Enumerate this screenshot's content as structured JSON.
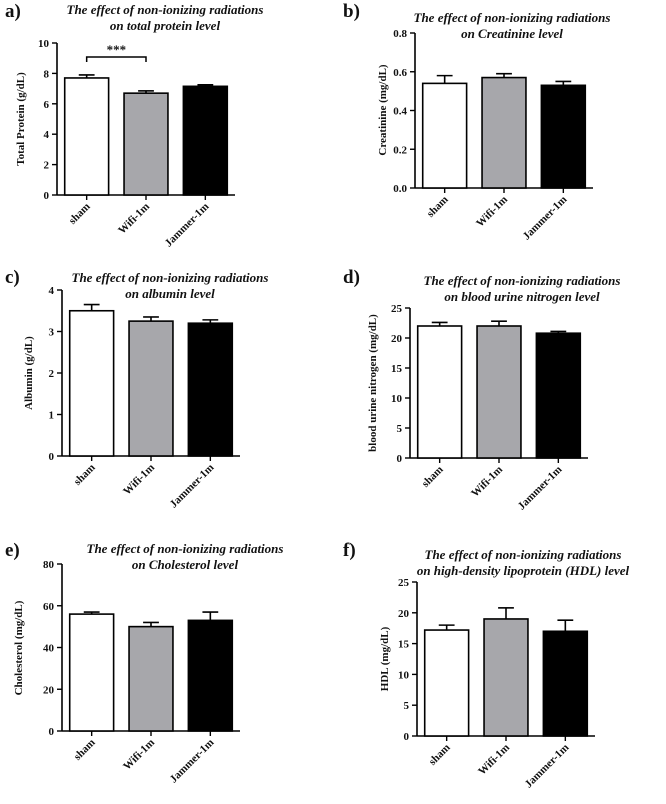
{
  "chart_data": [
    {
      "type": "bar",
      "panel": "a)",
      "title": [
        "The effect of non-ionizing radiations",
        "on total protein level"
      ],
      "ylabel": "Total Protein (g/dL)",
      "categories": [
        "sham",
        "Wifi-1m",
        "Jammer-1m"
      ],
      "values": [
        7.7,
        6.7,
        7.15
      ],
      "errors": [
        0.2,
        0.15,
        0.1
      ],
      "ylim": [
        0,
        10
      ],
      "yticks": [
        "0",
        "2",
        "4",
        "6",
        "8",
        "10"
      ],
      "colors": [
        "#ffffff",
        "#a7a7ab",
        "#000000"
      ],
      "significance": {
        "from": "sham",
        "to": "Wifi-1m",
        "label": "***"
      }
    },
    {
      "type": "bar",
      "panel": "b)",
      "title": [
        "The effect of non-ionizing radiations",
        "on Creatinine level"
      ],
      "ylabel": "Creatinine (mg/dL)",
      "categories": [
        "sham",
        "Wifi-1m",
        "Jammer-1m"
      ],
      "values": [
        0.54,
        0.57,
        0.53
      ],
      "errors": [
        0.04,
        0.02,
        0.02
      ],
      "ylim": [
        0,
        0.8
      ],
      "yticks": [
        "0.0",
        "0.2",
        "0.4",
        "0.6",
        "0.8"
      ],
      "colors": [
        "#ffffff",
        "#a7a7ab",
        "#000000"
      ]
    },
    {
      "type": "bar",
      "panel": "c)",
      "title": [
        "The effect of non-ionizing radiations",
        "on albumin level"
      ],
      "ylabel": "Albumin (g/dL)",
      "categories": [
        "sham",
        "Wifi-1m",
        "Jammer-1m"
      ],
      "values": [
        3.5,
        3.25,
        3.2
      ],
      "errors": [
        0.15,
        0.1,
        0.08
      ],
      "ylim": [
        0,
        4
      ],
      "yticks": [
        "0",
        "1",
        "2",
        "3",
        "4"
      ],
      "colors": [
        "#ffffff",
        "#a7a7ab",
        "#000000"
      ]
    },
    {
      "type": "bar",
      "panel": "d)",
      "title": [
        "The effect of non-ionizing radiations",
        "on blood urine nitrogen level"
      ],
      "ylabel": "blood urine nitrogen  (mg/dL)",
      "categories": [
        "sham",
        "Wifi-1m",
        "Jammer-1m"
      ],
      "values": [
        22,
        22,
        20.8
      ],
      "errors": [
        0.6,
        0.8,
        0.3
      ],
      "ylim": [
        0,
        25
      ],
      "yticks": [
        "0",
        "5",
        "10",
        "15",
        "20",
        "25"
      ],
      "colors": [
        "#ffffff",
        "#a7a7ab",
        "#000000"
      ]
    },
    {
      "type": "bar",
      "panel": "e)",
      "title": [
        "The effect of non-ionizing radiations",
        "on Cholesterol level"
      ],
      "ylabel": "Cholesterol (mg/dL)",
      "categories": [
        "sham",
        "Wifi-1m",
        "Jammer-1m"
      ],
      "values": [
        56,
        50,
        53
      ],
      "errors": [
        1,
        2,
        4
      ],
      "ylim": [
        0,
        80
      ],
      "yticks": [
        "0",
        "20",
        "40",
        "60",
        "80"
      ],
      "colors": [
        "#ffffff",
        "#a7a7ab",
        "#000000"
      ]
    },
    {
      "type": "bar",
      "panel": "f)",
      "title": [
        "The effect of non-ionizing radiations",
        "on high-density lipoprotein (HDL) level"
      ],
      "ylabel": "HDL (mg/dL)",
      "categories": [
        "sham",
        "Wifi-1m",
        "Jammer-1m"
      ],
      "values": [
        17.2,
        19,
        17
      ],
      "errors": [
        0.8,
        1.8,
        1.8
      ],
      "ylim": [
        0,
        25
      ],
      "yticks": [
        "0",
        "5",
        "10",
        "15",
        "20",
        "25"
      ],
      "colors": [
        "#ffffff",
        "#a7a7ab",
        "#000000"
      ]
    }
  ]
}
